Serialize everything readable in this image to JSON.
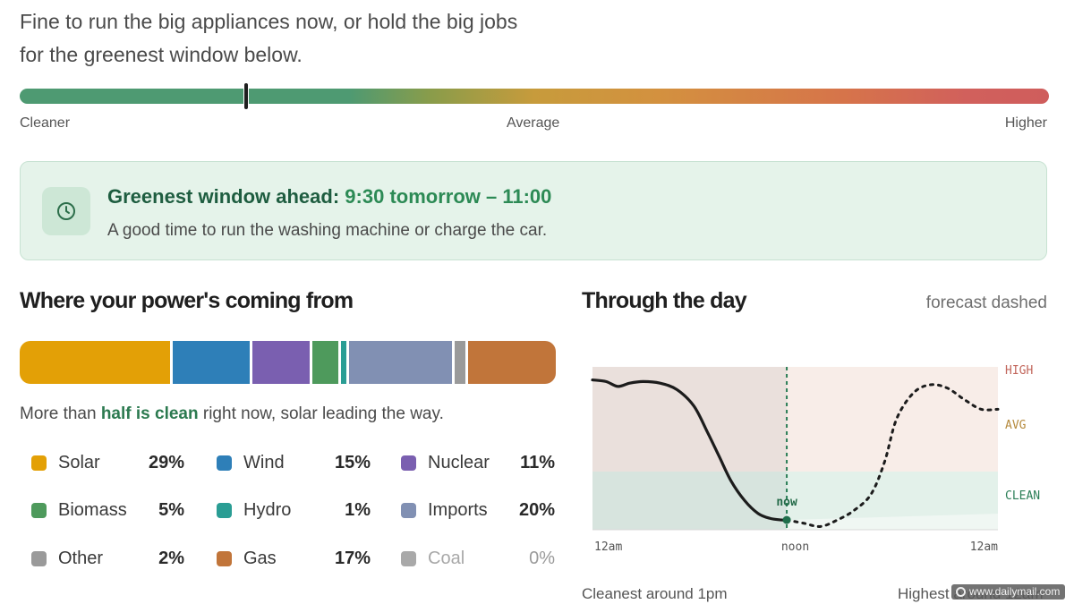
{
  "advice": {
    "line1": "Fine to run the big appliances now, or hold the big jobs",
    "line2": "for the greenest window below."
  },
  "intensity_scale": {
    "labels": [
      "Cleaner",
      "Average",
      "Higher"
    ],
    "current_position_fraction": 0.22
  },
  "greenest_window": {
    "title_prefix": "Greenest window ahead:",
    "time_range": "9:30 tomorrow – 11:00",
    "subtitle": "A good time to run the washing machine or charge the car.",
    "icon": "clock-icon"
  },
  "power_mix": {
    "title": "Where your power's coming from",
    "caption_before": "More than ",
    "caption_highlight": "half is clean",
    "caption_after": " right now, solar leading the way.",
    "sources": [
      {
        "name": "Solar",
        "pct_label": "29%",
        "value": 29,
        "color": "#e3a006"
      },
      {
        "name": "Wind",
        "pct_label": "15%",
        "value": 15,
        "color": "#2e7fb8"
      },
      {
        "name": "Nuclear",
        "pct_label": "11%",
        "value": 11,
        "color": "#7a5fb0"
      },
      {
        "name": "Biomass",
        "pct_label": "5%",
        "value": 5,
        "color": "#4e9a5c"
      },
      {
        "name": "Hydro",
        "pct_label": "1%",
        "value": 1,
        "color": "#2a9d94"
      },
      {
        "name": "Imports",
        "pct_label": "20%",
        "value": 20,
        "color": "#8190b3"
      },
      {
        "name": "Other",
        "pct_label": "2%",
        "value": 2,
        "color": "#9a9a9a"
      },
      {
        "name": "Gas",
        "pct_label": "17%",
        "value": 17,
        "color": "#c1753a"
      },
      {
        "name": "Coal",
        "pct_label": "0%",
        "value": 0,
        "color": "#a9a9a9",
        "muted": true
      }
    ]
  },
  "through_the_day": {
    "title": "Through the day",
    "note": "forecast dashed",
    "cleanest": "Cleanest around 1pm",
    "highest": "Highest around 12am",
    "watermark": "www.dailymail.com"
  },
  "chart_data": {
    "type": "line",
    "x_ticks": [
      "12am",
      "noon",
      "12am"
    ],
    "y_bands": [
      "HIGH",
      "AVG",
      "CLEAN"
    ],
    "now_label": "now",
    "x_range_hours": [
      0,
      24
    ],
    "y_range": [
      0,
      100
    ],
    "now_hour": 11.5,
    "series": [
      {
        "style": "solid",
        "x": [
          0,
          0.8,
          1.5,
          2.2,
          3,
          4,
          5,
          6,
          6.8,
          7.5,
          8.2,
          9,
          9.8,
          10.5,
          11.2,
          11.5
        ],
        "y": [
          92,
          91,
          88,
          90,
          91,
          90,
          86,
          76,
          60,
          45,
          30,
          18,
          10,
          7,
          6,
          6
        ]
      },
      {
        "style": "dashed",
        "x": [
          11.5,
          12.5,
          13.5,
          14.5,
          15.5,
          16.5,
          17.3,
          18,
          19,
          20,
          21,
          22,
          23,
          24
        ],
        "y": [
          6,
          4,
          2,
          6,
          12,
          22,
          42,
          68,
          84,
          89,
          87,
          80,
          74,
          74
        ]
      }
    ]
  }
}
